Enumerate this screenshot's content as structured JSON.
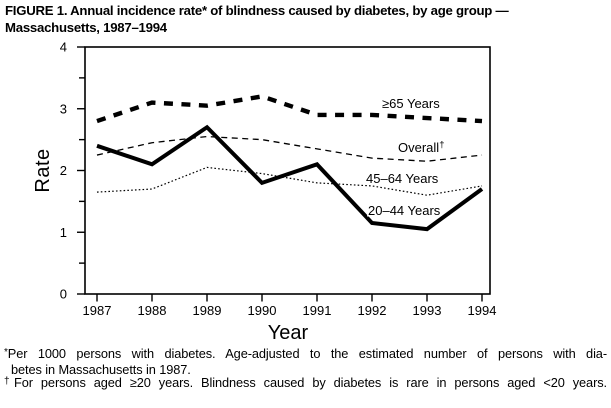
{
  "figure": {
    "title_line1": "FIGURE 1. Annual incidence rate* of blindness caused by diabetes, by age group —",
    "title_line2": "Massachusetts, 1987–1994"
  },
  "chart_data": {
    "type": "line",
    "title": "FIGURE 1. Annual incidence rate* of blindness caused by diabetes, by age group — Massachusetts, 1987–1994",
    "x": [
      1987,
      1988,
      1989,
      1990,
      1991,
      1992,
      1993,
      1994
    ],
    "xlabel": "Year",
    "ylabel": "Rate",
    "ylim": [
      0,
      4
    ],
    "y_major_ticks": [
      0,
      1,
      2,
      3,
      4
    ],
    "y_minor_ticks": [
      0.5,
      1.5,
      2.5,
      3.5
    ],
    "grid": "off",
    "legend": "inline labels next to lines",
    "series": [
      {
        "id": "ge65",
        "label": "≥65 Years",
        "style": "bold-dashed",
        "values": [
          2.8,
          3.1,
          3.05,
          3.2,
          2.9,
          2.9,
          2.85,
          2.8
        ]
      },
      {
        "id": "overall",
        "label": "Overall",
        "label_sup": "†",
        "style": "thin-dashed",
        "values": [
          2.25,
          2.45,
          2.55,
          2.5,
          2.35,
          2.2,
          2.15,
          2.25
        ]
      },
      {
        "id": "age45to64",
        "label": "45–64 Years",
        "style": "dotted",
        "values": [
          1.65,
          1.7,
          2.05,
          1.95,
          1.8,
          1.75,
          1.6,
          1.75
        ]
      },
      {
        "id": "age20to44",
        "label": "20–44 Years",
        "style": "bold-solid",
        "values": [
          2.4,
          2.1,
          2.7,
          1.8,
          2.1,
          1.15,
          1.05,
          1.7
        ]
      }
    ]
  },
  "footnotes": {
    "line1_marker": "*",
    "line1_text": "Per 1000 persons with diabetes. Age-adjusted to the estimated number of persons with dia-",
    "line2_text": "betes in Massachusetts in 1987.",
    "line3_marker": "†",
    "line3_text": "For persons aged ≥20 years. Blindness caused by diabetes is rare in persons aged <20 years."
  },
  "colors": {
    "ink": "#000000",
    "background": "#ffffff"
  }
}
